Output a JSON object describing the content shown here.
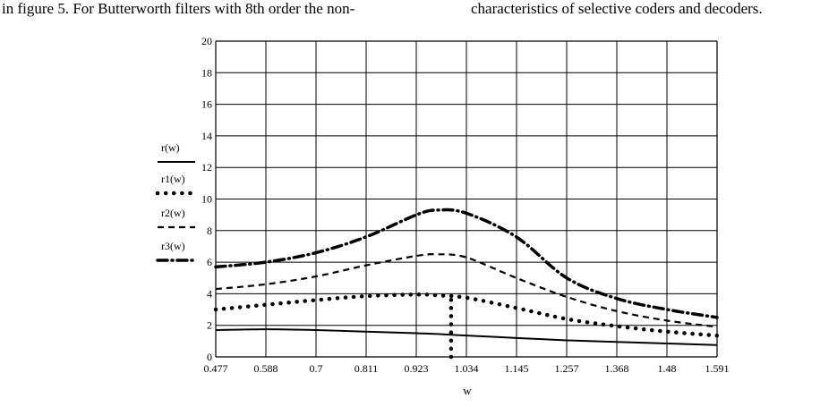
{
  "page": {
    "caption_left": "in figure 5. For Butterworth filters with 8th order the non-",
    "caption_right": "characteristics of selective coders and decoders."
  },
  "chart_data": {
    "type": "line",
    "title": "",
    "xlabel": "w",
    "ylabel": "",
    "xlim": [
      0.477,
      1.591
    ],
    "ylim": [
      0,
      20
    ],
    "x_ticks": [
      "0.477",
      "0.588",
      "0.7",
      "0.811",
      "0.923",
      "1.034",
      "1.145",
      "1.257",
      "1.368",
      "1.48",
      "1.591"
    ],
    "y_ticks": [
      "0",
      "2",
      "4",
      "6",
      "8",
      "10",
      "12",
      "14",
      "16",
      "18",
      "20"
    ],
    "grid": true,
    "legend_position": "left",
    "x": [
      0.477,
      0.588,
      0.7,
      0.811,
      0.923,
      0.97,
      1.034,
      1.145,
      1.257,
      1.368,
      1.48,
      1.591
    ],
    "series": [
      {
        "name": "r(w)",
        "style": "solid",
        "values": [
          1.7,
          1.75,
          1.7,
          1.6,
          1.5,
          1.45,
          1.35,
          1.2,
          1.05,
          0.95,
          0.85,
          0.75
        ]
      },
      {
        "name": "r1(w)",
        "style": "dotted",
        "values": [
          3.0,
          3.3,
          3.6,
          3.85,
          3.95,
          3.9,
          3.75,
          3.1,
          2.4,
          1.95,
          1.6,
          1.35
        ]
      },
      {
        "name": "r2(w)",
        "style": "dashed",
        "values": [
          4.3,
          4.6,
          5.1,
          5.8,
          6.4,
          6.5,
          6.3,
          5.0,
          3.8,
          2.9,
          2.3,
          1.9
        ]
      },
      {
        "name": "r3(w)",
        "style": "dash-dot",
        "values": [
          5.7,
          6.0,
          6.6,
          7.6,
          9.0,
          9.3,
          9.1,
          7.6,
          5.0,
          3.7,
          3.0,
          2.5
        ]
      }
    ],
    "marker_line": {
      "x": 1.0,
      "y_from": 0,
      "y_to": 3.9,
      "style": "dotted"
    }
  }
}
